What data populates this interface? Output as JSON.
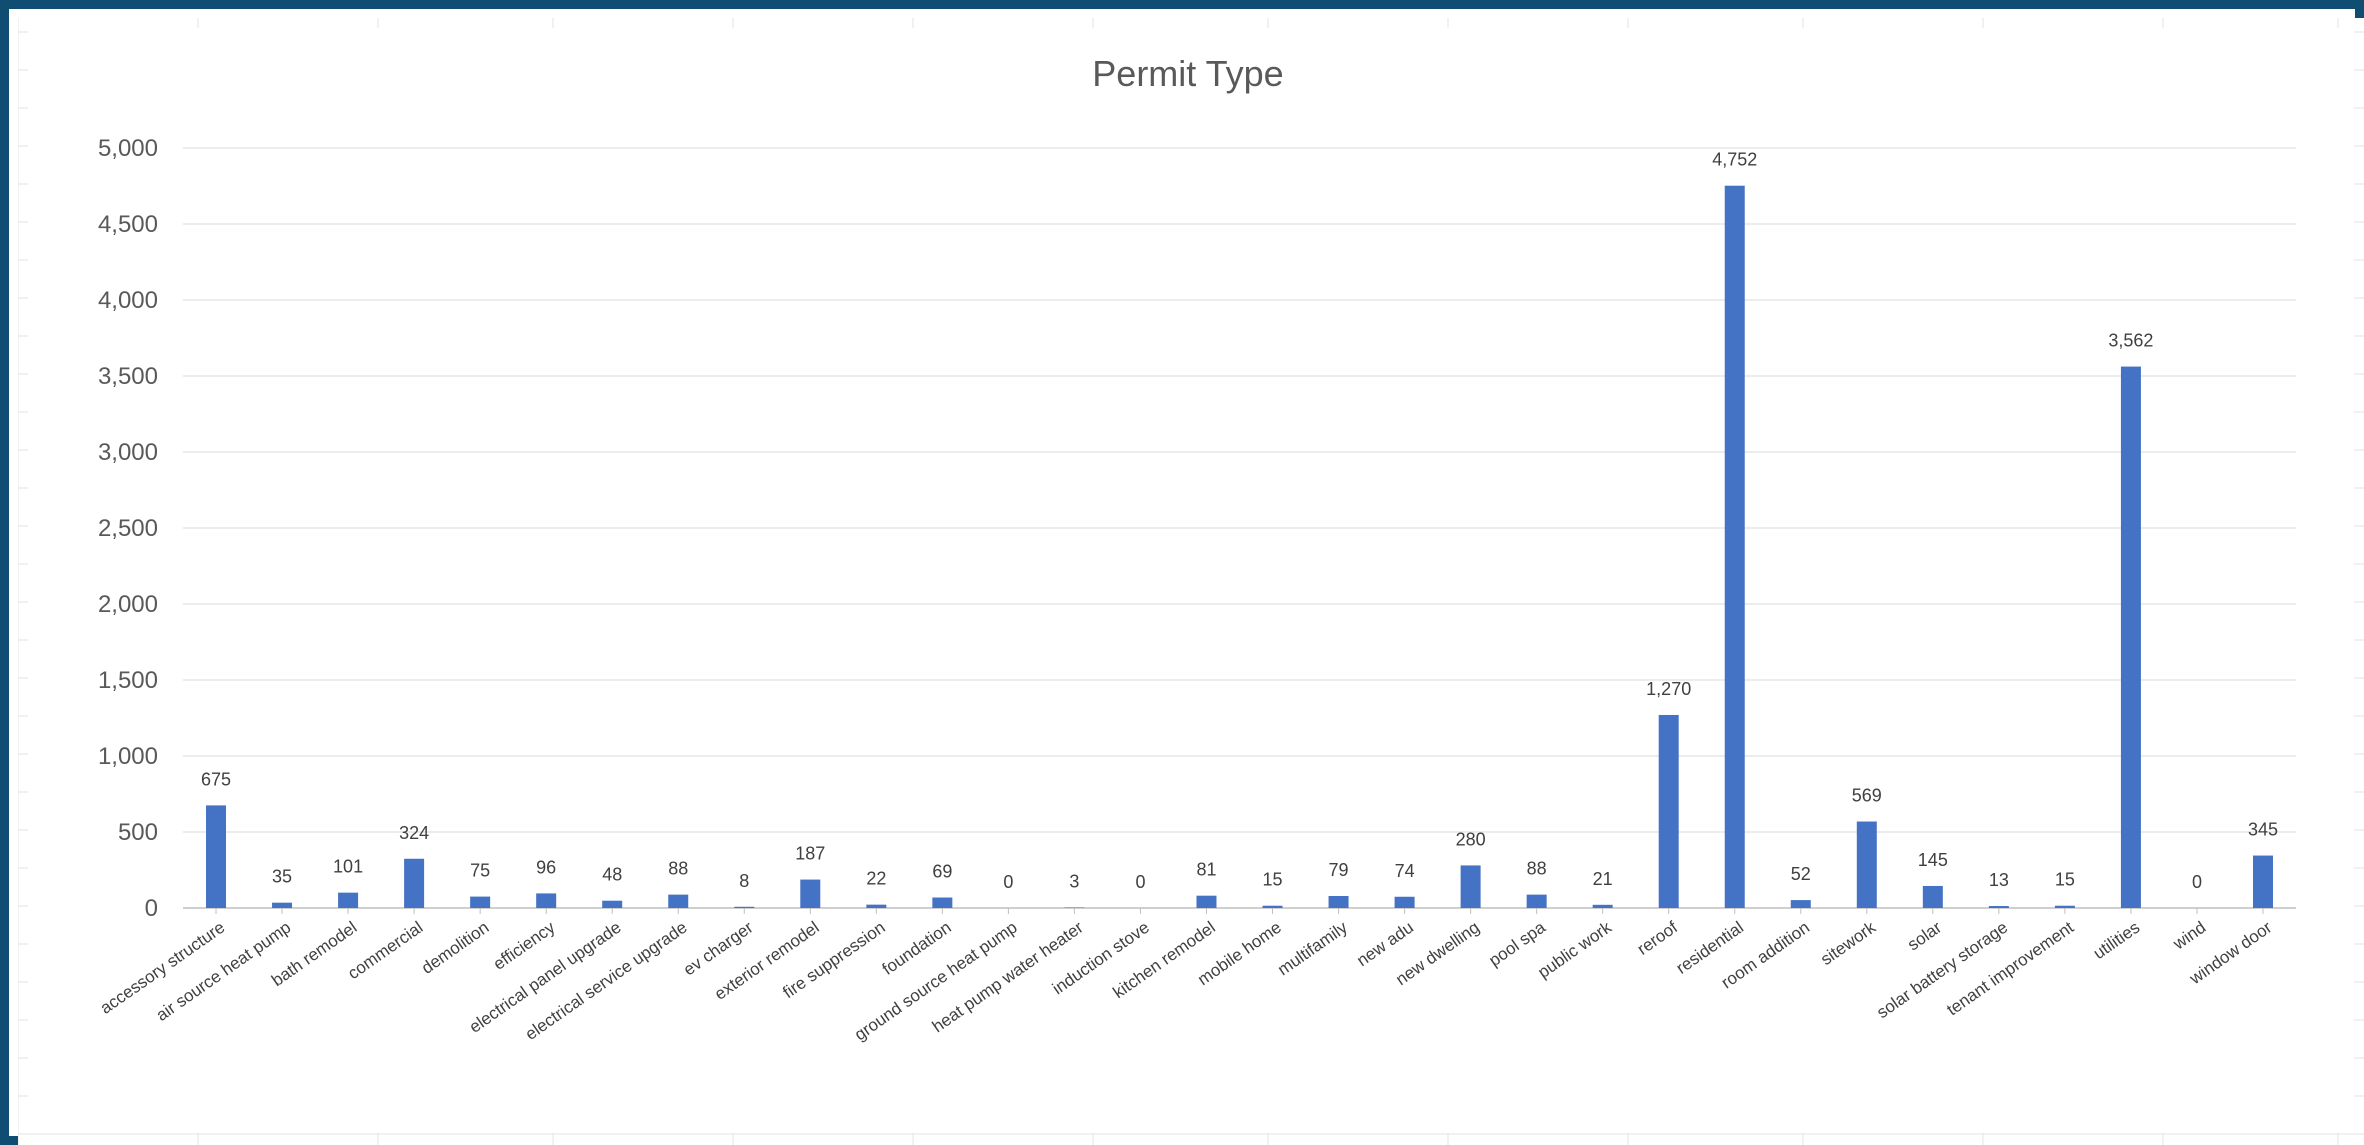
{
  "chart_data": {
    "type": "bar",
    "title": "Permit Type",
    "xlabel": "",
    "ylabel": "",
    "ylim": [
      0,
      5000
    ],
    "ytick_values": [
      0,
      500,
      1000,
      1500,
      2000,
      2500,
      3000,
      3500,
      4000,
      4500,
      5000
    ],
    "ytick_labels": [
      "0",
      "500",
      "1,000",
      "1,500",
      "2,000",
      "2,500",
      "3,000",
      "3,500",
      "4,000",
      "4,500",
      "5,000"
    ],
    "grid": true,
    "legend": "none",
    "bar_color": "#4472c4",
    "categories": [
      "accessory structure",
      "air source heat pump",
      "bath remodel",
      "commercial",
      "demolition",
      "efficiency",
      "electrical panel upgrade",
      "electrical service upgrade",
      "ev charger",
      "exterior remodel",
      "fire suppression",
      "foundation",
      "ground source heat pump",
      "heat pump water heater",
      "induction stove",
      "kitchen remodel",
      "mobile home",
      "multifamily",
      "new adu",
      "new dwelling",
      "pool spa",
      "public work",
      "reroof",
      "residential",
      "room addition",
      "sitework",
      "solar",
      "solar battery storage",
      "tenant improvement",
      "utilities",
      "wind",
      "window door"
    ],
    "values": [
      675,
      35,
      101,
      324,
      75,
      96,
      48,
      88,
      8,
      187,
      22,
      69,
      0,
      3,
      0,
      81,
      15,
      79,
      74,
      280,
      88,
      21,
      1270,
      4752,
      52,
      569,
      145,
      13,
      15,
      3562,
      0,
      345
    ],
    "data_labels": [
      "675",
      "35",
      "101",
      "324",
      "75",
      "96",
      "48",
      "88",
      "8",
      "187",
      "22",
      "69",
      "0",
      "3",
      "0",
      "81",
      "15",
      "79",
      "74",
      "280",
      "88",
      "21",
      "1,270",
      "4,752",
      "52",
      "569",
      "145",
      "13",
      "15",
      "3,562",
      "0",
      "345"
    ]
  }
}
